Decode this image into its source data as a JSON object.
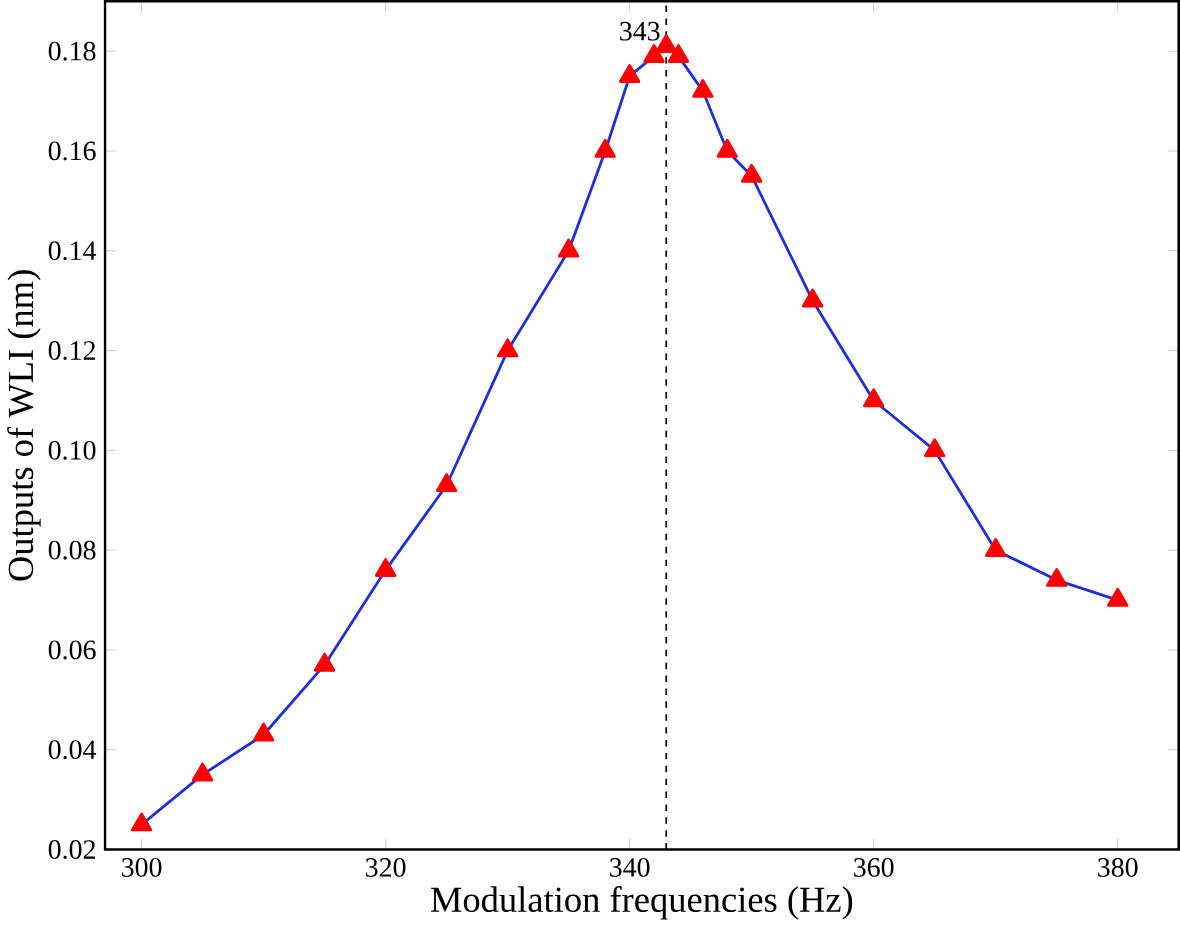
{
  "chart_data": {
    "type": "line",
    "xlabel": "Modulation frequencies (Hz)",
    "ylabel": "Outputs of WLI (nm)",
    "x": [
      300,
      305,
      310,
      315,
      320,
      325,
      330,
      335,
      338,
      340,
      342,
      343,
      344,
      346,
      348,
      350,
      355,
      360,
      365,
      370,
      375,
      380
    ],
    "series": [
      {
        "color": "#1f2fd6",
        "values": [
          0.025,
          0.035,
          0.043,
          0.057,
          0.076,
          0.093,
          0.12,
          0.14,
          0.16,
          0.175,
          0.179,
          0.181,
          0.179,
          0.172,
          0.16,
          0.155,
          0.13,
          0.11,
          0.1,
          0.08,
          0.074,
          0.07
        ]
      }
    ],
    "marker": "triangle",
    "line_style": "solid",
    "grid": false,
    "xlim": [
      297,
      385
    ],
    "ylim": [
      0.02,
      0.19
    ],
    "xticks": [
      300,
      320,
      340,
      360,
      380
    ],
    "yticks": [
      {
        "value": 0.02,
        "label": "0.02"
      },
      {
        "value": 0.04,
        "label": "0.04"
      },
      {
        "value": 0.06,
        "label": "0.06"
      },
      {
        "value": 0.08,
        "label": "0.08"
      },
      {
        "value": 0.1,
        "label": "0.10"
      },
      {
        "value": 0.12,
        "label": "0.12"
      },
      {
        "value": 0.14,
        "label": "0.14"
      },
      {
        "value": 0.16,
        "label": "0.16"
      },
      {
        "value": 0.18,
        "label": "0.18"
      }
    ],
    "ref_lines": [
      {
        "axis": "x",
        "value": 343,
        "label": "343",
        "color": "#000000",
        "line_style": "dashed"
      }
    ]
  }
}
